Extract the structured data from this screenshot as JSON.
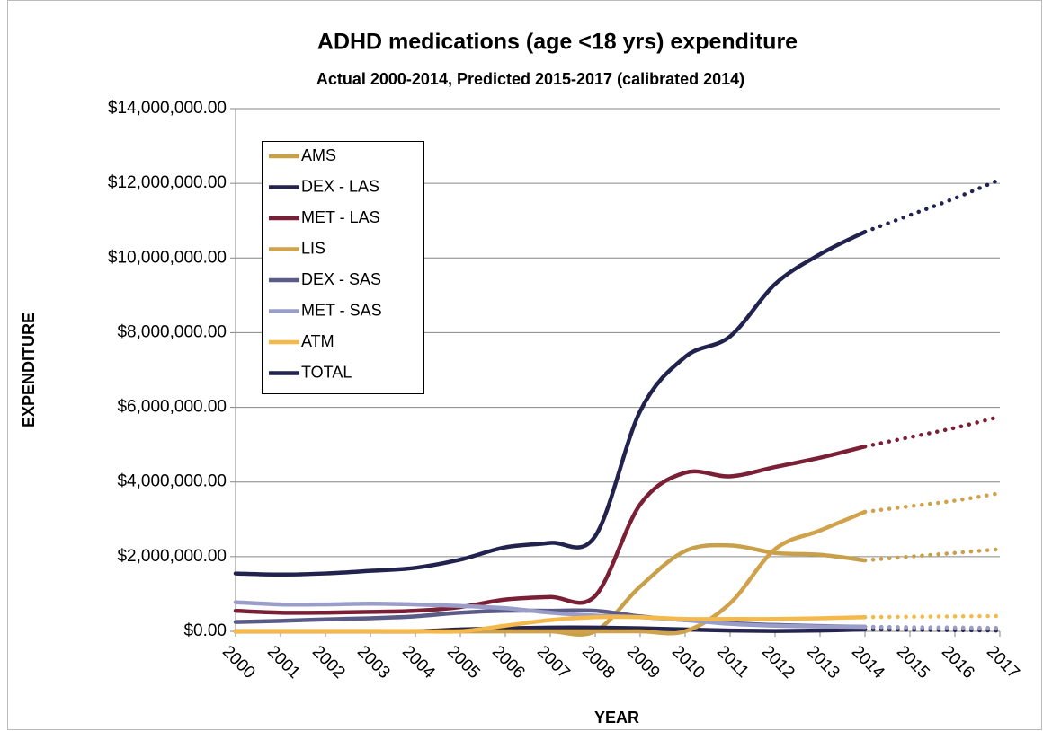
{
  "chart_data": {
    "type": "line",
    "title": "ADHD medications (age <18 yrs) expenditure",
    "subtitle": "Actual 2000-2014, Predicted 2015-2017 (calibrated 2014)",
    "x_label": "YEAR",
    "y_label": "EXPENDITURE",
    "categories": [
      "2000",
      "2001",
      "2002",
      "2003",
      "2004",
      "2005",
      "2006",
      "2007",
      "2008",
      "2009",
      "2010",
      "2011",
      "2012",
      "2013",
      "2014",
      "2015",
      "2016",
      "2017"
    ],
    "forecast_from": "2014",
    "ylim": [
      0,
      14000000
    ],
    "yticks": [
      {
        "value": 0,
        "label": "$0.00"
      },
      {
        "value": 2000000,
        "label": "$2,000,000.00"
      },
      {
        "value": 4000000,
        "label": "$4,000,000.00"
      },
      {
        "value": 6000000,
        "label": "$6,000,000.00"
      },
      {
        "value": 8000000,
        "label": "$8,000,000.00"
      },
      {
        "value": 10000000,
        "label": "$10,000,000.00"
      },
      {
        "value": 12000000,
        "label": "$12,000,000.00"
      },
      {
        "value": 14000000,
        "label": "$14,000,000.00"
      }
    ],
    "grid": true,
    "legend": "upper left",
    "series": [
      {
        "name": "AMS",
        "color": "#c9a04a",
        "values": [
          0,
          0,
          0,
          0,
          0,
          0,
          0,
          0,
          0,
          1200000,
          2150000,
          2300000,
          2100000,
          2050000,
          1900000,
          2000000,
          2100000,
          2200000
        ]
      },
      {
        "name": "DEX - LAS",
        "color": "#24244f",
        "values": [
          0,
          0,
          0,
          0,
          0,
          50000,
          80000,
          100000,
          100000,
          80000,
          50000,
          20000,
          10000,
          20000,
          50000,
          40000,
          30000,
          20000
        ]
      },
      {
        "name": "MET - LAS",
        "color": "#7a1f35",
        "values": [
          550000,
          500000,
          500000,
          520000,
          550000,
          650000,
          850000,
          920000,
          950000,
          3400000,
          4250000,
          4150000,
          4400000,
          4650000,
          4950000,
          5200000,
          5450000,
          5750000
        ]
      },
      {
        "name": "LIS",
        "color": "#d1a24c",
        "values": [
          0,
          0,
          0,
          0,
          0,
          0,
          0,
          0,
          0,
          0,
          0,
          750000,
          2200000,
          2700000,
          3200000,
          3350000,
          3500000,
          3700000
        ]
      },
      {
        "name": "DEX - SAS",
        "color": "#5b5b87",
        "values": [
          250000,
          280000,
          320000,
          350000,
          400000,
          500000,
          550000,
          550000,
          550000,
          400000,
          300000,
          220000,
          170000,
          140000,
          120000,
          100000,
          80000,
          60000
        ]
      },
      {
        "name": "MET - SAS",
        "color": "#9b9dc9",
        "values": [
          780000,
          720000,
          720000,
          740000,
          720000,
          680000,
          620000,
          500000,
          420000,
          380000,
          300000,
          200000,
          150000,
          130000,
          120000,
          110000,
          100000,
          90000
        ]
      },
      {
        "name": "ATM",
        "color": "#f5b94a",
        "values": [
          0,
          0,
          0,
          0,
          0,
          0,
          150000,
          300000,
          380000,
          380000,
          330000,
          330000,
          330000,
          350000,
          380000,
          390000,
          400000,
          410000
        ]
      },
      {
        "name": "TOTAL",
        "color": "#22224e",
        "values": [
          1550000,
          1520000,
          1550000,
          1620000,
          1700000,
          1920000,
          2250000,
          2370000,
          2550000,
          5900000,
          7350000,
          7900000,
          9300000,
          10100000,
          10700000,
          11150000,
          11600000,
          12100000
        ]
      }
    ]
  }
}
